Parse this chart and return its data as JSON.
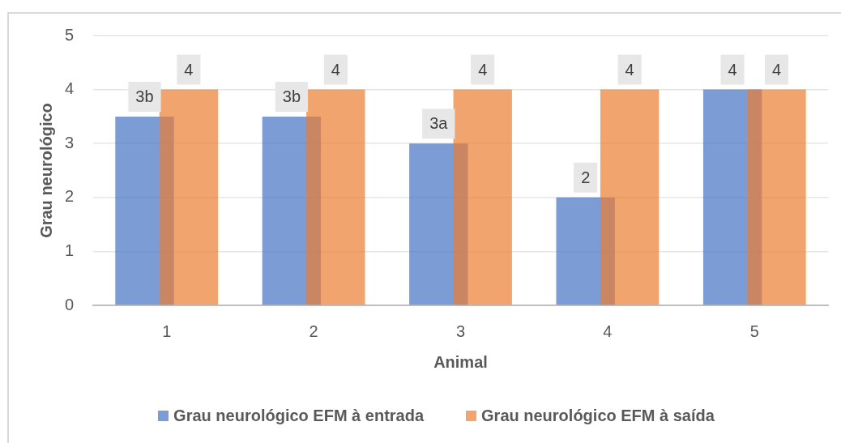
{
  "chart_data": {
    "type": "bar",
    "xlabel": "Animal",
    "ylabel": "Grau neurológico",
    "categories": [
      "1",
      "2",
      "3",
      "4",
      "5"
    ],
    "series": [
      {
        "name": "Grau neurológico EFM à entrada",
        "color": "#7c9cd6",
        "values": [
          3.5,
          3.5,
          3,
          2,
          4
        ],
        "value_labels": [
          "3b",
          "3b",
          "3a",
          "2",
          "4"
        ]
      },
      {
        "name": "Grau neurológico EFM à saída",
        "color": "#f1a46e",
        "values": [
          4,
          4,
          4,
          4,
          4
        ],
        "value_labels": [
          "4",
          "4",
          "4",
          "4",
          "4"
        ]
      }
    ],
    "ylim": [
      0,
      5
    ],
    "yticks": [
      0,
      1,
      2,
      3,
      4,
      5
    ],
    "grid": "y",
    "legend": "bottom"
  }
}
